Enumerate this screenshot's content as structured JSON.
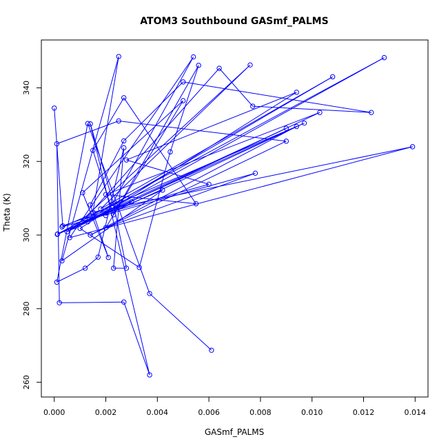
{
  "chart_data": {
    "type": "line",
    "title": "ATOM3 Southbound GASmf_PALMS",
    "xlabel": "GASmf_PALMS",
    "ylabel": "Theta (K)",
    "xlim": [
      -0.0005,
      0.0145
    ],
    "ylim": [
      256,
      353
    ],
    "x_ticks": [
      "0.000",
      "0.002",
      "0.004",
      "0.006",
      "0.008",
      "0.010",
      "0.012",
      "0.014"
    ],
    "y_ticks": [
      "260",
      "280",
      "300",
      "320",
      "340"
    ],
    "series_color": "#0000ff",
    "grid": false,
    "legend": "none",
    "series": [
      {
        "values": [
          [
            0.0,
            334.5
          ],
          [
            0.00033,
            302.5
          ],
          [
            0.003,
            309.0
          ],
          [
            0.00012,
            300.2
          ],
          [
            0.0042,
            312.2
          ],
          [
            0.0003,
            293.0
          ],
          [
            0.0025,
            348.5
          ],
          [
            0.0015,
            306.2
          ],
          [
            0.0139,
            324.0
          ],
          [
            0.0006,
            299.3
          ],
          [
            0.0054,
            348.4
          ],
          [
            0.002,
            305.3
          ],
          [
            0.0097,
            330.4
          ],
          [
            0.0008,
            302.3
          ],
          [
            0.0076,
            346.2
          ],
          [
            0.0018,
            307.1
          ],
          [
            0.0108,
            343.0
          ],
          [
            0.0005,
            300.9
          ],
          [
            0.009,
            329.0
          ],
          [
            0.00013,
            300.3
          ],
          [
            0.0128,
            348.2
          ],
          [
            0.0013,
            303.6
          ],
          [
            0.0103,
            333.3
          ],
          [
            0.002,
            311.0
          ],
          [
            0.0055,
            308.5
          ],
          [
            0.0027,
            337.3
          ],
          [
            0.0015,
            323.0
          ],
          [
            0.0023,
            305.5
          ],
          [
            0.0056,
            346.1
          ],
          [
            0.0045,
            322.6
          ],
          [
            0.0033,
            291.2
          ],
          [
            0.001,
            301.8
          ],
          [
            0.0094,
            338.8
          ],
          [
            0.0028,
            320.4
          ],
          [
            0.006,
            313.8
          ],
          [
            0.0012,
            304.4
          ],
          [
            0.0064,
            345.3
          ],
          [
            0.0077,
            335.0
          ],
          [
            0.0123,
            333.3
          ],
          [
            0.005,
            341.6
          ],
          [
            0.0027,
            325.6
          ],
          [
            0.0014,
            308.2
          ],
          [
            0.0021,
            293.9
          ],
          [
            0.0011,
            311.5
          ],
          [
            0.005,
            336.5
          ],
          [
            0.002,
            302.0
          ],
          [
            0.0078,
            316.8
          ],
          [
            0.0003,
            302.2
          ],
          [
            0.0094,
            329.5
          ],
          [
            0.0014,
            300.0
          ],
          [
            0.009,
            325.5
          ],
          [
            0.0025,
            331.0
          ],
          [
            0.0001,
            324.8
          ],
          [
            0.0002,
            281.6
          ],
          [
            0.0027,
            281.8
          ],
          [
            0.0037,
            262.0
          ],
          [
            0.0014,
            330.2
          ],
          [
            0.0023,
            308.5
          ],
          [
            0.0028,
            291.0
          ],
          [
            0.0023,
            291.0
          ],
          [
            0.0027,
            323.7
          ],
          [
            0.0017,
            294.0
          ],
          [
            0.0012,
            291.0
          ],
          [
            0.0001,
            287.2
          ],
          [
            0.0013,
            330.3
          ],
          [
            0.0037,
            284.1
          ],
          [
            0.0061,
            268.7
          ]
        ]
      }
    ]
  }
}
